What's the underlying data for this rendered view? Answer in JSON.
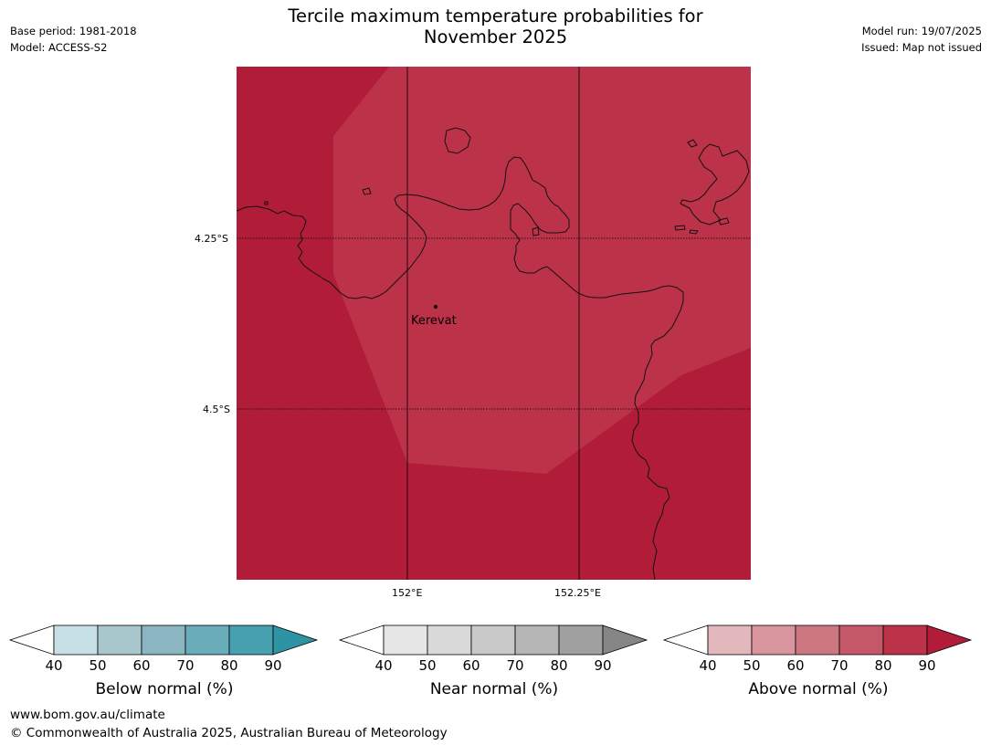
{
  "header": {
    "title_line1": "Tercile maximum temperature probabilities for",
    "title_line2": "November 2025",
    "base_period": "Base period: 1981-2018",
    "model": "Model: ACCESS-S2",
    "model_run": "Model run: 19/07/2025",
    "issued": "Issued: Map not issued"
  },
  "map": {
    "lat_labels": [
      "4.25°S",
      "4.5°S"
    ],
    "lon_labels": [
      "152°E",
      "152.25°E"
    ],
    "place_label": "Kerevat",
    "colors": {
      "above_80_90": "#bb3249",
      "above_90_plus": "#b11c39",
      "coastline": "#111111",
      "gridline": "#000000"
    }
  },
  "colorbars": [
    {
      "label": "Below normal (%)",
      "ticks": [
        "40",
        "50",
        "60",
        "70",
        "80",
        "90"
      ],
      "colors": [
        "#ffffff",
        "#c7e0e5",
        "#a8c7cc",
        "#8ab5c1",
        "#6aacb9",
        "#46a0af",
        "#2e93a3"
      ]
    },
    {
      "label": "Near normal (%)",
      "ticks": [
        "40",
        "50",
        "60",
        "70",
        "80",
        "90"
      ],
      "colors": [
        "#ffffff",
        "#e6e6e6",
        "#d9d9d9",
        "#c9c9c9",
        "#b5b5b5",
        "#a0a0a0",
        "#858585"
      ]
    },
    {
      "label": "Above normal (%)",
      "ticks": [
        "40",
        "50",
        "60",
        "70",
        "80",
        "90"
      ],
      "colors": [
        "#ffffff",
        "#e3b8bd",
        "#d8959d",
        "#cd7780",
        "#c45768",
        "#bb3249",
        "#b11c39"
      ]
    }
  ],
  "footer": {
    "url": "www.bom.gov.au/climate",
    "copyright": "© Commonwealth of Australia 2025, Australian Bureau of Meteorology"
  }
}
